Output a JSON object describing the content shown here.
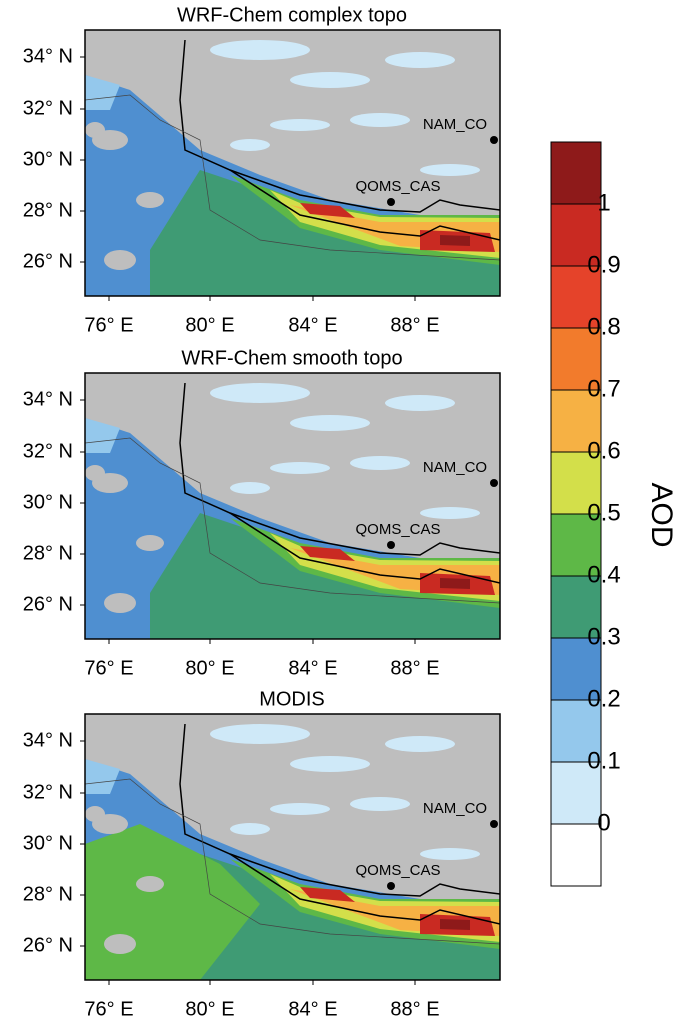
{
  "panels": [
    {
      "title": "WRF-Chem complex topo",
      "lat_labels": [
        "34° N",
        "32° N",
        "30° N",
        "28° N",
        "26° N"
      ],
      "lon_labels": [
        "76° E",
        "80° E",
        "84° E",
        "88° E"
      ],
      "stations": [
        "NAM_CO",
        "QOMS_CAS"
      ]
    },
    {
      "title": "WRF-Chem smooth topo",
      "lat_labels": [
        "34° N",
        "32° N",
        "30° N",
        "28° N",
        "26° N"
      ],
      "lon_labels": [
        "76° E",
        "80° E",
        "84° E",
        "88° E"
      ],
      "stations": [
        "NAM_CO",
        "QOMS_CAS"
      ]
    },
    {
      "title": "MODIS",
      "lat_labels": [
        "34° N",
        "32° N",
        "30° N",
        "28° N",
        "26° N"
      ],
      "lon_labels": [
        "76° E",
        "80° E",
        "84° E",
        "88° E"
      ],
      "stations": [
        "NAM_CO",
        "QOMS_CAS"
      ]
    }
  ],
  "colorbar": {
    "label": "AOD",
    "tick_labels": [
      "0",
      "0.1",
      "0.2",
      "0.3",
      "0.4",
      "0.5",
      "0.6",
      "0.7",
      "0.8",
      "0.9",
      "1"
    ],
    "colors": [
      "#ffffff",
      "#cfe9f8",
      "#94c8ec",
      "#4f8fd0",
      "#3f9b74",
      "#5eb847",
      "#d3df4a",
      "#f6b144",
      "#f27b2c",
      "#e5432a",
      "#c92a22",
      "#8e1a1a"
    ]
  }
}
